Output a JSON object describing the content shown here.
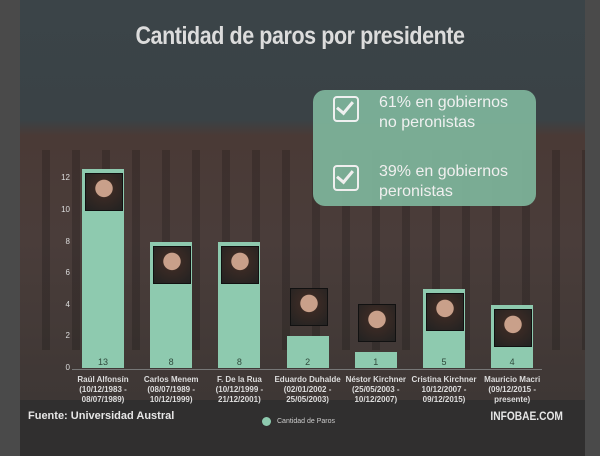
{
  "title": "Cantidad de paros por presidente",
  "callout": [
    "61% en gobiernos no peronistas",
    "39% en gobiernos peronistas"
  ],
  "source": "Fuente: Universidad Austral",
  "brand": "INFOBAE.COM",
  "colors": {
    "bar": "#8ecaaf",
    "callout": "#7fb69c"
  },
  "chart_data": {
    "type": "bar",
    "title": "Cantidad de paros por presidente",
    "categories": [
      {
        "name": "Raúl Alfonsín",
        "period": "(10/12/1983 - 08/07/1989)"
      },
      {
        "name": "Carlos Menem",
        "period": "(08/07/1989 - 10/12/1999)"
      },
      {
        "name": "F. De la Rua",
        "period": "(10/12/1999 - 21/12/2001)"
      },
      {
        "name": "Eduardo Duhalde",
        "period": "(02/01/2002 - 25/05/2003)"
      },
      {
        "name": "Néstor Kirchner",
        "period": "(25/05/2003 - 10/12/2007)"
      },
      {
        "name": "Cristina Kirchner",
        "period": "10/12/2007 - 09/12/2015)"
      },
      {
        "name": "Mauricio Macri",
        "period": "(09/12/2015 - presente)"
      }
    ],
    "series": [
      {
        "name": "Cantidad de Paros",
        "values": [
          13,
          8,
          8,
          2,
          1,
          5,
          4
        ]
      }
    ],
    "yticks": [
      "0",
      "2",
      "4",
      "6",
      "8",
      "10",
      "12"
    ],
    "ylim": [
      0,
      13
    ],
    "legend": "bottom-center"
  }
}
